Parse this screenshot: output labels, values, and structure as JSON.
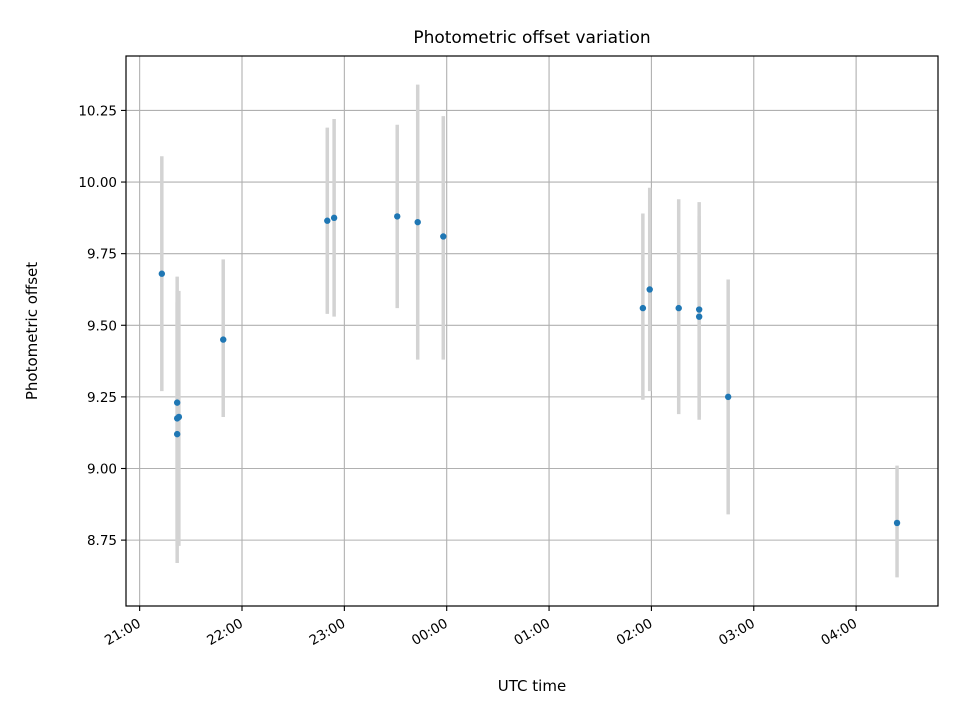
{
  "chart_data": {
    "type": "scatter",
    "title": "Photometric offset variation",
    "xlabel": "UTC time",
    "ylabel": "Photometric offset",
    "x_unit": "time",
    "xlim": [
      "20:52",
      "04:48"
    ],
    "ylim": [
      8.52,
      10.44
    ],
    "grid": true,
    "x_ticks": [
      "21:00",
      "22:00",
      "23:00",
      "00:00",
      "01:00",
      "02:00",
      "03:00",
      "04:00"
    ],
    "y_ticks": [
      "8.75",
      "9.00",
      "9.25",
      "9.50",
      "9.75",
      "10.00",
      "10.25"
    ],
    "colors": {
      "point": "#1f77b4",
      "errorbar": "#d3d3d3",
      "grid": "#b0b0b0"
    },
    "points": [
      {
        "x": "21:13",
        "y": 9.68,
        "ylow": 9.27,
        "yhigh": 10.09
      },
      {
        "x": "21:22",
        "y": 9.23,
        "ylow": 8.75,
        "yhigh": 9.67
      },
      {
        "x": "21:22",
        "y": 9.175,
        "ylow": 8.73,
        "yhigh": 9.62
      },
      {
        "x": "21:22",
        "y": 9.12,
        "ylow": 8.67,
        "yhigh": 9.58
      },
      {
        "x": "21:23",
        "y": 9.18,
        "ylow": 8.73,
        "yhigh": 9.62
      },
      {
        "x": "21:49",
        "y": 9.45,
        "ylow": 9.18,
        "yhigh": 9.73
      },
      {
        "x": "22:50",
        "y": 9.865,
        "ylow": 9.54,
        "yhigh": 10.19
      },
      {
        "x": "22:54",
        "y": 9.875,
        "ylow": 9.53,
        "yhigh": 10.22
      },
      {
        "x": "23:31",
        "y": 9.88,
        "ylow": 9.56,
        "yhigh": 10.2
      },
      {
        "x": "23:43",
        "y": 9.86,
        "ylow": 9.38,
        "yhigh": 10.34
      },
      {
        "x": "23:58",
        "y": 9.81,
        "ylow": 9.38,
        "yhigh": 10.23
      },
      {
        "x": "01:55",
        "y": 9.56,
        "ylow": 9.24,
        "yhigh": 9.89
      },
      {
        "x": "01:59",
        "y": 9.625,
        "ylow": 9.27,
        "yhigh": 9.98
      },
      {
        "x": "02:16",
        "y": 9.56,
        "ylow": 9.19,
        "yhigh": 9.94
      },
      {
        "x": "02:28",
        "y": 9.555,
        "ylow": 9.18,
        "yhigh": 9.93
      },
      {
        "x": "02:28",
        "y": 9.53,
        "ylow": 9.17,
        "yhigh": 9.88
      },
      {
        "x": "02:45",
        "y": 9.25,
        "ylow": 8.84,
        "yhigh": 9.66
      },
      {
        "x": "04:24",
        "y": 8.81,
        "ylow": 8.62,
        "yhigh": 9.01
      }
    ]
  }
}
